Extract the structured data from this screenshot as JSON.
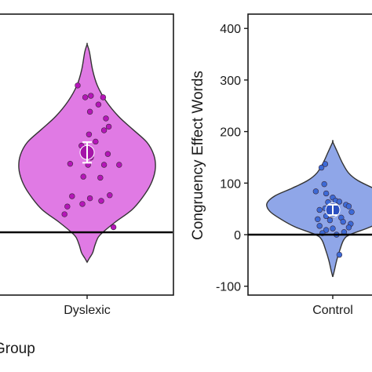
{
  "chart_data": [
    {
      "type": "violin",
      "panel": "left",
      "title": "",
      "xlabel": "Group",
      "ylabel": "",
      "categories": [
        "Dyslexic"
      ],
      "ylim": [
        -115,
        420
      ],
      "reference_line": 0,
      "colors": {
        "fill": "#e07ae4",
        "point": "#b515b8",
        "summary": "#a514a8",
        "error_bar": "#ffffff",
        "outline": "#333333"
      },
      "summary": {
        "mean": 155,
        "ci_low": 135,
        "ci_high": 175
      },
      "points": [
        {
          "x": 0.9,
          "y": 285
        },
        {
          "x": 1.04,
          "y": 265
        },
        {
          "x": 1.17,
          "y": 262
        },
        {
          "x": 0.98,
          "y": 262
        },
        {
          "x": 1.12,
          "y": 248
        },
        {
          "x": 1.03,
          "y": 234
        },
        {
          "x": 1.2,
          "y": 221
        },
        {
          "x": 1.23,
          "y": 205
        },
        {
          "x": 1.18,
          "y": 198
        },
        {
          "x": 1.02,
          "y": 190
        },
        {
          "x": 1.09,
          "y": 176
        },
        {
          "x": 0.94,
          "y": 168
        },
        {
          "x": 1.22,
          "y": 152
        },
        {
          "x": 1.04,
          "y": 145
        },
        {
          "x": 0.82,
          "y": 133
        },
        {
          "x": 1.01,
          "y": 131
        },
        {
          "x": 1.18,
          "y": 131
        },
        {
          "x": 1.34,
          "y": 131
        },
        {
          "x": 0.96,
          "y": 108
        },
        {
          "x": 1.14,
          "y": 106
        },
        {
          "x": 1.24,
          "y": 72
        },
        {
          "x": 0.84,
          "y": 70
        },
        {
          "x": 1.03,
          "y": 66
        },
        {
          "x": 1.15,
          "y": 61
        },
        {
          "x": 0.95,
          "y": 55
        },
        {
          "x": 0.79,
          "y": 50
        },
        {
          "x": 0.76,
          "y": 35
        },
        {
          "x": 1.28,
          "y": 10
        }
      ]
    },
    {
      "type": "violin",
      "panel": "right",
      "title": "",
      "xlabel": "",
      "ylabel": "Congruency Effect Words",
      "categories": [
        "Control"
      ],
      "ylim": [
        -120,
        420
      ],
      "yticks": [
        -100,
        0,
        100,
        200,
        300,
        400
      ],
      "reference_line": 0,
      "colors": {
        "fill": "#8fa6e8",
        "point": "#3d6ad6",
        "summary": "#2b50c0",
        "error_bar": "#ffffff",
        "outline": "#333333"
      },
      "summary": {
        "mean": 48,
        "ci_low": 38,
        "ci_high": 58
      },
      "points": [
        {
          "x": 0.88,
          "y": 130
        },
        {
          "x": 0.92,
          "y": 137
        },
        {
          "x": 0.91,
          "y": 98
        },
        {
          "x": 0.82,
          "y": 84
        },
        {
          "x": 0.93,
          "y": 80
        },
        {
          "x": 1.0,
          "y": 72
        },
        {
          "x": 1.03,
          "y": 66
        },
        {
          "x": 1.07,
          "y": 64
        },
        {
          "x": 0.95,
          "y": 63
        },
        {
          "x": 1.14,
          "y": 58
        },
        {
          "x": 1.17,
          "y": 55
        },
        {
          "x": 0.92,
          "y": 51
        },
        {
          "x": 0.98,
          "y": 50
        },
        {
          "x": 0.86,
          "y": 48
        },
        {
          "x": 1.2,
          "y": 44
        },
        {
          "x": 1.03,
          "y": 41
        },
        {
          "x": 0.99,
          "y": 38
        },
        {
          "x": 0.93,
          "y": 36
        },
        {
          "x": 1.09,
          "y": 33
        },
        {
          "x": 0.84,
          "y": 30
        },
        {
          "x": 0.97,
          "y": 28
        },
        {
          "x": 1.11,
          "y": 25
        },
        {
          "x": 1.19,
          "y": 21
        },
        {
          "x": 0.86,
          "y": 17
        },
        {
          "x": 1.17,
          "y": 14
        },
        {
          "x": 1.0,
          "y": 12
        },
        {
          "x": 0.93,
          "y": 9
        },
        {
          "x": 1.12,
          "y": 5
        },
        {
          "x": 0.89,
          "y": 3
        },
        {
          "x": 1.04,
          "y": 0
        },
        {
          "x": 1.07,
          "y": -39
        }
      ]
    }
  ]
}
